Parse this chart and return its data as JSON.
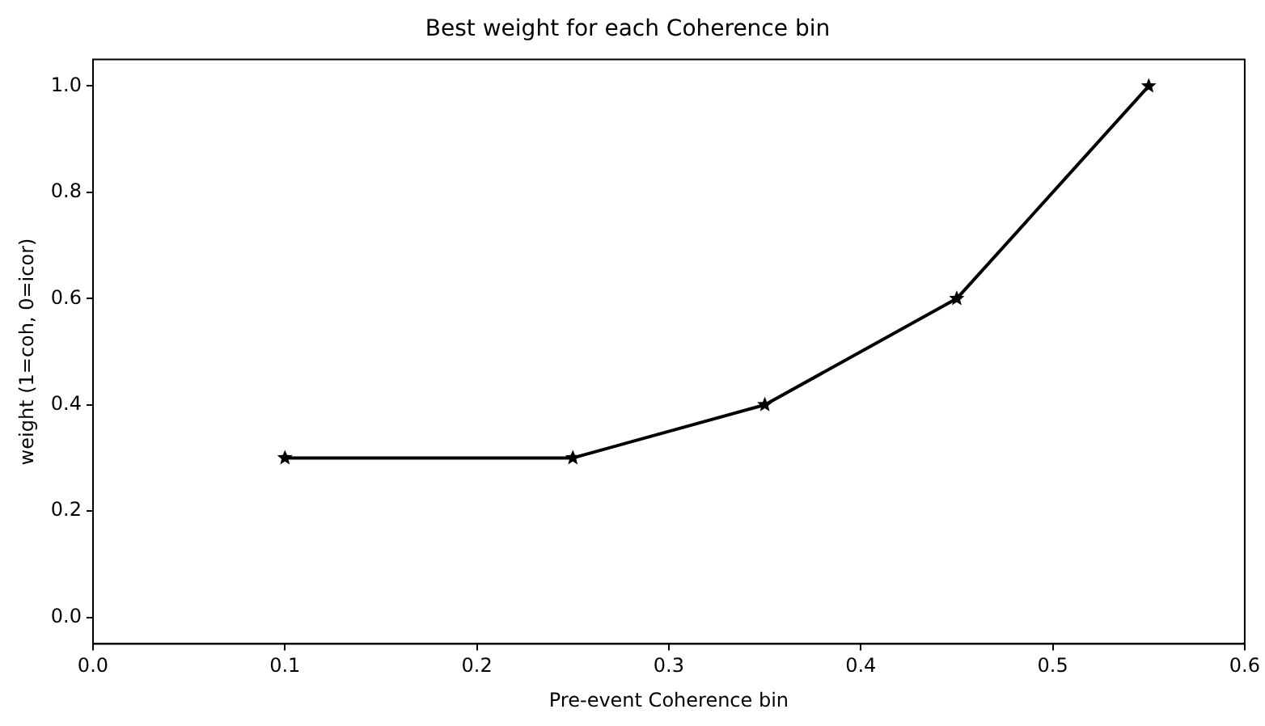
{
  "chart_data": {
    "type": "line",
    "title": "Best weight for each Coherence bin",
    "xlabel": "Pre-event Coherence bin",
    "ylabel": "weight (1=coh, 0=icor)",
    "x": [
      0.1,
      0.25,
      0.35,
      0.45,
      0.55
    ],
    "series": [
      {
        "color": "#000000",
        "values": [
          0.3,
          0.3,
          0.4,
          0.6,
          1.0
        ]
      }
    ],
    "xlim": [
      0,
      0.6
    ],
    "xticks": [
      {
        "value": 0,
        "label": "0.0"
      },
      0.1,
      0.2,
      0.3,
      0.4,
      0.5,
      0.6
    ],
    "ylim": [
      -0.05,
      1.05
    ],
    "yticks": [
      {
        "value": 0,
        "label": "0.0"
      },
      0.2,
      0.4,
      0.6,
      0.8,
      {
        "value": 1,
        "label": "1.0"
      }
    ],
    "marker": "star",
    "line_style": "solid"
  }
}
